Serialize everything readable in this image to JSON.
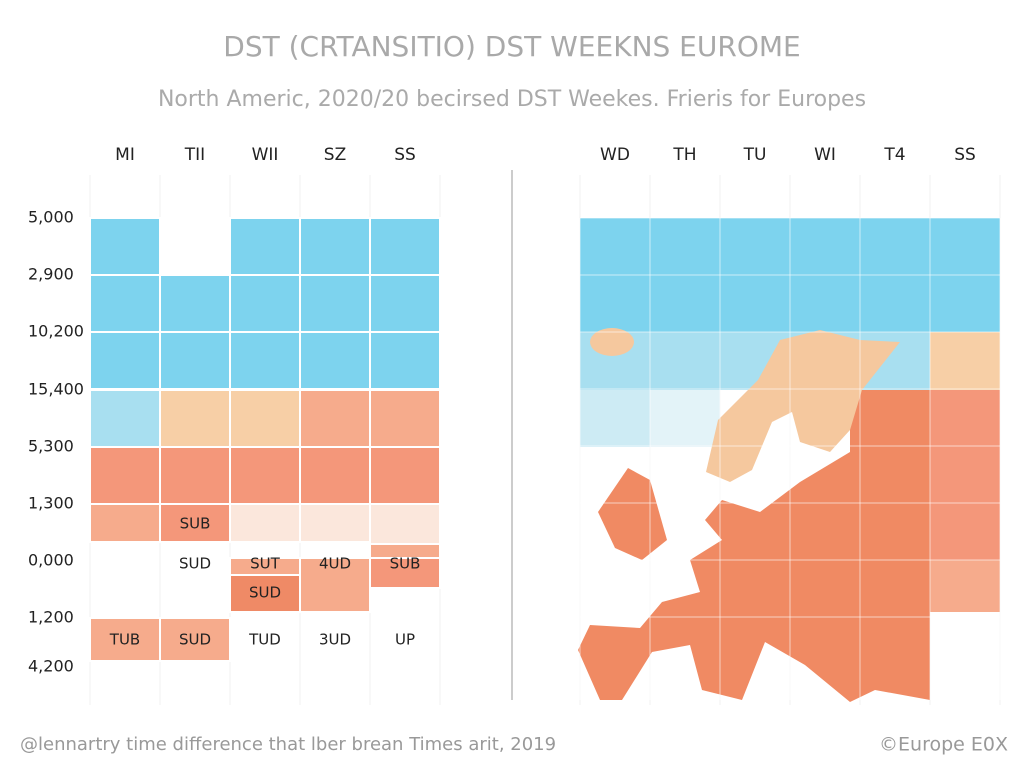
{
  "title": "DST (CRTANSITIO) DST WEEKNS EUROME",
  "subtitle": "North Americ, 2020/20 becirsed DST Weekes. Frieris for Europes",
  "left_panel": {
    "columns": [
      "MI",
      "TII",
      "WII",
      "SZ",
      "SS"
    ],
    "row_labels": [
      "5,000",
      "2,900",
      "10,200",
      "15,400",
      "5,300",
      "1,300",
      "0,000",
      "1,200",
      "4,200"
    ],
    "cells": [
      "SUB",
      "SUD",
      "SUT",
      "4UD",
      "SUB",
      "SUD",
      "TUB",
      "SUD",
      "TUD",
      "3UD",
      "UP"
    ]
  },
  "right_panel": {
    "columns": [
      "WD",
      "TH",
      "TU",
      "WI",
      "T4",
      "SS"
    ]
  },
  "footer": {
    "source": "@lennartry time difference that lber brean Times arit, 2019",
    "credit": "©Europe E0X"
  }
}
